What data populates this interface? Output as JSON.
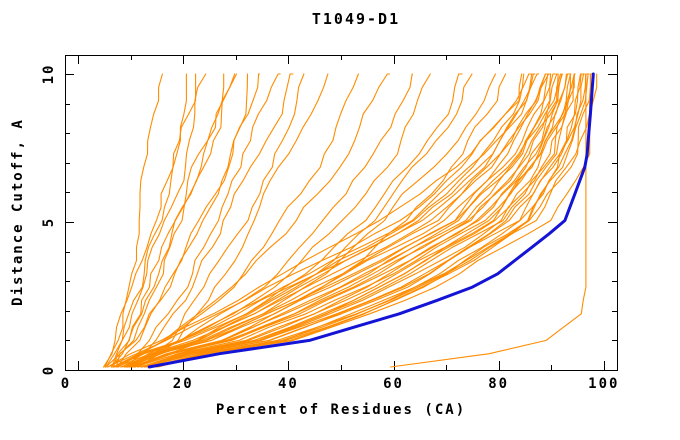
{
  "page": {
    "background": "#FFFFFF"
  },
  "chart_data": {
    "type": "line",
    "title": "T1049-D1",
    "xlabel": "Percent of Residues (CA)",
    "ylabel": "Distance Cutoff, A",
    "xlim": [
      0,
      100
    ],
    "ylim": [
      0,
      10
    ],
    "grid": false,
    "legend": "none",
    "x_ticks": {
      "minor_values": [
        0,
        10,
        20,
        30,
        40,
        50,
        60,
        70,
        80,
        90,
        100
      ],
      "labeled_values": [
        0,
        20,
        40,
        60,
        80,
        100
      ],
      "labels": [
        "0",
        "20",
        "40",
        "60",
        "80",
        "100"
      ]
    },
    "y_ticks": {
      "minor_values": [
        0,
        1,
        2,
        3,
        4,
        5,
        6,
        7,
        8,
        9,
        10
      ],
      "labeled_values": [
        0,
        5,
        10
      ],
      "labels": [
        "0",
        "5",
        "10"
      ]
    },
    "colors": {
      "model_curves": "#FF8C00",
      "highlight_curve": "#1414D6",
      "axis": "#000000",
      "background": "#FFFFFF"
    },
    "description": "Each curve: percent of CA residues (x) superimposable under a distance cutoff in Angstroms (y). Curves given as x values sampled at y_control_grid cutoffs.",
    "y_control_grid": [
      0.1,
      0.5,
      1,
      2,
      3,
      5,
      7,
      9,
      10
    ],
    "series": {
      "highlight": {
        "name": "highlighted-model",
        "x_at_y": [
          13.5,
          25,
          44,
          63,
          78,
          92.5,
          96.7,
          97.6,
          98
        ]
      },
      "models": [
        {
          "x_at_y": [
            5,
            6,
            7,
            8,
            9,
            11,
            14,
            16,
            17
          ]
        },
        {
          "x_at_y": [
            5,
            6,
            7,
            9,
            10,
            13,
            16,
            19,
            20
          ]
        },
        {
          "x_at_y": [
            6,
            7,
            8,
            10,
            12,
            15,
            18,
            21,
            22
          ]
        },
        {
          "x_at_y": [
            6,
            7,
            9,
            11,
            13,
            17,
            20,
            23,
            25
          ]
        },
        {
          "x_at_y": [
            7,
            8,
            10,
            12,
            14,
            18,
            22,
            26,
            27
          ]
        },
        {
          "x_at_y": [
            7,
            9,
            11,
            13,
            16,
            20,
            24,
            28,
            30
          ]
        },
        {
          "x_at_y": [
            8,
            9,
            12,
            15,
            18,
            22,
            27,
            31,
            32
          ]
        },
        {
          "x_at_y": [
            8,
            10,
            13,
            16,
            19,
            24,
            29,
            33,
            35
          ]
        },
        {
          "x_at_y": [
            9,
            11,
            14,
            18,
            21,
            26,
            31,
            36,
            38
          ]
        },
        {
          "x_at_y": [
            9,
            12,
            15,
            19,
            23,
            28,
            34,
            39,
            41
          ]
        },
        {
          "x_at_y": [
            10,
            13,
            17,
            21,
            25,
            31,
            37,
            42,
            44
          ]
        },
        {
          "x_at_y": [
            11,
            14,
            18,
            23,
            27,
            34,
            40,
            45,
            47
          ]
        },
        {
          "x_at_y": [
            6,
            8,
            10,
            13,
            15,
            19,
            23,
            27,
            29
          ]
        },
        {
          "x_at_y": [
            8,
            12,
            17,
            25,
            32,
            42,
            50,
            56,
            58
          ]
        },
        {
          "x_at_y": [
            9,
            13,
            19,
            28,
            36,
            47,
            55,
            61,
            63
          ]
        },
        {
          "x_at_y": [
            10,
            14,
            21,
            31,
            39,
            51,
            60,
            66,
            68
          ]
        },
        {
          "x_at_y": [
            11,
            15,
            23,
            33,
            42,
            55,
            64,
            71,
            73
          ]
        },
        {
          "x_at_y": [
            12,
            17,
            25,
            36,
            45,
            58,
            68,
            75,
            77
          ]
        },
        {
          "x_at_y": [
            7,
            11,
            16,
            23,
            29,
            38,
            46,
            52,
            54
          ]
        },
        {
          "x_at_y": [
            13,
            18,
            27,
            38,
            48,
            62,
            72,
            79,
            81
          ]
        },
        {
          "x_at_y": [
            10,
            16,
            24,
            34,
            43,
            56,
            66,
            73,
            75
          ]
        },
        {
          "x_at_y": [
            5,
            9,
            15,
            26,
            36,
            58,
            72,
            82,
            84
          ]
        },
        {
          "x_at_y": [
            5.8,
            10.1,
            17,
            28.4,
            38.6,
            60.3,
            73.7,
            83.2,
            85.1
          ]
        },
        {
          "x_at_y": [
            6.3,
            10.8,
            18.3,
            30,
            40.4,
            61.8,
            74.9,
            84,
            85.8
          ]
        },
        {
          "x_at_y": [
            6.7,
            11.4,
            19.5,
            31.4,
            41.9,
            63.2,
            76,
            84.7,
            86.4
          ]
        },
        {
          "x_at_y": [
            7.2,
            12,
            20.6,
            32.7,
            43.3,
            64.5,
            76.9,
            85.3,
            87
          ]
        },
        {
          "x_at_y": [
            7.5,
            12.6,
            21.6,
            33.9,
            44.7,
            65.6,
            77.9,
            85.9,
            87.6
          ]
        },
        {
          "x_at_y": [
            7.9,
            13.1,
            22.6,
            35,
            45.9,
            66.8,
            78.7,
            86.5,
            88.1
          ]
        },
        {
          "x_at_y": [
            8.3,
            13.6,
            23.5,
            36.2,
            47.1,
            67.8,
            79.5,
            87.1,
            88.6
          ]
        },
        {
          "x_at_y": [
            8.6,
            14.1,
            24.4,
            37.2,
            48.3,
            68.9,
            80.3,
            87.6,
            89.1
          ]
        },
        {
          "x_at_y": [
            9,
            14.5,
            25.3,
            38.3,
            49.4,
            69.9,
            81.1,
            88.1,
            89.5
          ]
        },
        {
          "x_at_y": [
            9.3,
            15,
            26.1,
            39.3,
            50.6,
            70.8,
            81.8,
            88.6,
            90
          ]
        },
        {
          "x_at_y": [
            9.6,
            15.4,
            27,
            40.3,
            51.6,
            71.8,
            82.6,
            89.1,
            90.4
          ]
        },
        {
          "x_at_y": [
            9.9,
            15.9,
            27.8,
            41.2,
            52.7,
            72.7,
            83.3,
            89.6,
            90.9
          ]
        },
        {
          "x_at_y": [
            10.2,
            16.3,
            28.5,
            42.2,
            53.7,
            73.6,
            84,
            90.1,
            91.3
          ]
        },
        {
          "x_at_y": [
            10.5,
            16.7,
            29.3,
            43.1,
            54.7,
            74.5,
            84.7,
            90.5,
            91.7
          ]
        },
        {
          "x_at_y": [
            10.8,
            17.1,
            30.1,
            44,
            55.7,
            75.4,
            85.3,
            91,
            92.1
          ]
        },
        {
          "x_at_y": [
            11.1,
            17.5,
            30.8,
            44.9,
            56.7,
            76.3,
            86,
            91.4,
            92.5
          ]
        },
        {
          "x_at_y": [
            11.4,
            17.9,
            31.6,
            45.8,
            57.7,
            77.1,
            86.7,
            91.9,
            92.9
          ]
        },
        {
          "x_at_y": [
            11.7,
            18.3,
            32.3,
            46.6,
            58.6,
            78,
            87.3,
            92.3,
            93.3
          ]
        },
        {
          "x_at_y": [
            11.9,
            18.7,
            33,
            47.5,
            59.6,
            78.8,
            87.9,
            92.7,
            93.7
          ]
        },
        {
          "x_at_y": [
            12.2,
            19.1,
            33.7,
            48.3,
            60.5,
            79.6,
            88.6,
            93.2,
            94.1
          ]
        },
        {
          "x_at_y": [
            12.5,
            19.5,
            34.4,
            49.2,
            61.4,
            80.4,
            89.2,
            93.6,
            94.5
          ]
        },
        {
          "x_at_y": [
            12.7,
            19.8,
            35.1,
            50,
            62.3,
            81.2,
            89.8,
            94,
            94.8
          ]
        },
        {
          "x_at_y": [
            13,
            20.2,
            35.8,
            50.8,
            63.2,
            82,
            90.4,
            94.4,
            95.2
          ]
        },
        {
          "x_at_y": [
            13.3,
            20.6,
            36.5,
            51.6,
            64.1,
            82.8,
            91,
            94.8,
            95.6
          ]
        },
        {
          "x_at_y": [
            13.5,
            20.9,
            37.1,
            52.4,
            64.9,
            83.5,
            91.6,
            95.2,
            95.9
          ]
        },
        {
          "x_at_y": [
            13.8,
            21.3,
            37.8,
            53.2,
            65.8,
            84.3,
            92.1,
            95.6,
            96.3
          ]
        },
        {
          "x_at_y": [
            14,
            21.6,
            38.4,
            54,
            66.7,
            85.1,
            92.7,
            96,
            96.6
          ]
        },
        {
          "x_at_y": [
            14.3,
            22,
            39.1,
            54.7,
            67.5,
            85.8,
            93.3,
            96.4,
            97
          ]
        },
        {
          "x_at_y": [
            14.5,
            22.3,
            39.7,
            55.5,
            68.3,
            86.5,
            93.9,
            96.7,
            97.3
          ]
        },
        {
          "x_at_y": [
            14.8,
            22.7,
            40.4,
            56.2,
            69.2,
            87.3,
            94.4,
            97.1,
            97.6
          ]
        },
        {
          "x_at_y": [
            15,
            23,
            41,
            57,
            70,
            88,
            95,
            97.5,
            98
          ]
        },
        {
          "x_at_y": [
            60,
            77,
            89,
            95.3,
            95.9,
            96.2,
            96.5,
            96.7,
            96.8
          ]
        }
      ]
    }
  }
}
